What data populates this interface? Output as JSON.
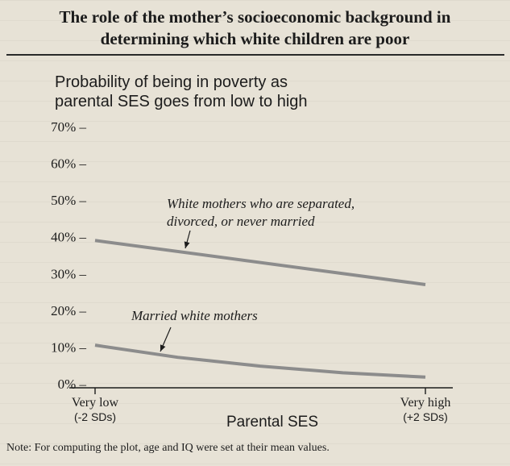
{
  "title_line1": "The role of the mother’s socioeconomic background in",
  "title_line2": "determining which white children are poor",
  "note": "Note: For computing the plot, age and IQ were set at their mean values.",
  "chart_data": {
    "type": "line",
    "title": "Probability of being in poverty as parental SES goes from low to high",
    "title_lines": [
      "Probability of being in poverty as",
      "parental SES goes from low to high"
    ],
    "xlabel": "Parental SES",
    "xlim": [
      -2,
      2
    ],
    "x_ticks": [
      {
        "value": -2,
        "label": "Very low",
        "sublabel": "(-2 SDs)"
      },
      {
        "value": 2,
        "label": "Very high",
        "sublabel": "(+2 SDs)"
      }
    ],
    "ylim": [
      0,
      70
    ],
    "y_ticks": [
      0,
      10,
      20,
      30,
      40,
      50,
      60,
      70
    ],
    "y_tick_labels": [
      "0%",
      "10%",
      "20%",
      "30%",
      "40%",
      "50%",
      "60%",
      "70%"
    ],
    "grid": false,
    "legend": "none",
    "series_color": "#8c8c8c",
    "series": [
      {
        "label_lines": [
          "White mothers who are separated,",
          "divorced, or never married"
        ],
        "x": [
          -2,
          2
        ],
        "y": [
          39,
          27
        ]
      },
      {
        "label_lines": [
          "Married white mothers"
        ],
        "x": [
          -2,
          -1,
          0,
          1,
          2
        ],
        "y": [
          10.5,
          7.2,
          4.8,
          3.0,
          1.8
        ]
      }
    ]
  }
}
